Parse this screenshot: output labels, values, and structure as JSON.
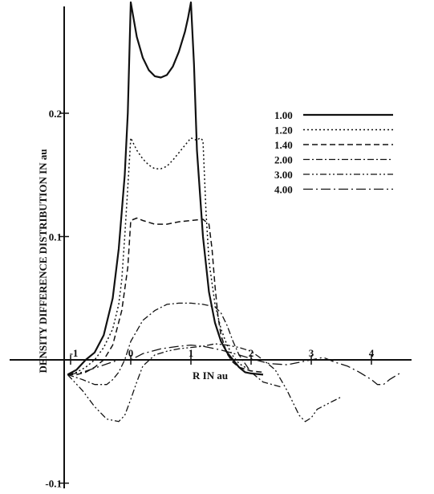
{
  "chart_data": {
    "type": "line",
    "xlabel": "R IN au",
    "ylabel": "DENSITY DIFFERENCE DISTRIBUTION IN au",
    "xlim": [
      -1.1,
      4.7
    ],
    "ylim": [
      -0.1,
      0.29
    ],
    "x_ticks": [
      {
        "value": -1,
        "label": "-1"
      },
      {
        "value": 0,
        "label": "0"
      },
      {
        "value": 1,
        "label": "1"
      },
      {
        "value": 2,
        "label": "2"
      },
      {
        "value": 3,
        "label": "3"
      },
      {
        "value": 4,
        "label": "4"
      }
    ],
    "y_ticks": [
      {
        "value": -0.1,
        "label": "-0.1"
      },
      {
        "value": 0.1,
        "label": "0.1"
      },
      {
        "value": 0.2,
        "label": "0.2"
      }
    ],
    "legend_position": "top-right",
    "series": [
      {
        "name": "1.00",
        "dash": "solid",
        "width": 2.2,
        "x": [
          -1.05,
          -0.9,
          -0.75,
          -0.6,
          -0.45,
          -0.3,
          -0.2,
          -0.1,
          -0.05,
          0,
          0.1,
          0.2,
          0.3,
          0.4,
          0.5,
          0.6,
          0.7,
          0.8,
          0.9,
          0.95,
          1.0,
          1.05,
          1.1,
          1.2,
          1.3,
          1.4,
          1.5,
          1.6,
          1.7,
          1.8,
          1.9,
          2.0,
          2.2
        ],
        "y": [
          -0.012,
          -0.008,
          0.0,
          0.006,
          0.02,
          0.05,
          0.09,
          0.15,
          0.2,
          0.29,
          0.262,
          0.245,
          0.235,
          0.23,
          0.229,
          0.231,
          0.238,
          0.25,
          0.266,
          0.277,
          0.29,
          0.24,
          0.17,
          0.1,
          0.055,
          0.03,
          0.015,
          0.006,
          0.0,
          -0.006,
          -0.01,
          -0.011,
          -0.012
        ]
      },
      {
        "name": "1.20",
        "dash": "dotted",
        "width": 1.5,
        "x": [
          -1.05,
          -0.9,
          -0.75,
          -0.6,
          -0.45,
          -0.3,
          -0.2,
          -0.15,
          -0.1,
          -0.05,
          0,
          0.1,
          0.2,
          0.3,
          0.4,
          0.5,
          0.6,
          0.7,
          0.8,
          0.9,
          1.0,
          1.1,
          1.15,
          1.2,
          1.25,
          1.3,
          1.4,
          1.5,
          1.6,
          1.7,
          1.8,
          1.9,
          2.0
        ],
        "y": [
          -0.012,
          -0.01,
          -0.006,
          0.0,
          0.01,
          0.025,
          0.045,
          0.065,
          0.1,
          0.14,
          0.18,
          0.17,
          0.163,
          0.158,
          0.155,
          0.155,
          0.157,
          0.162,
          0.168,
          0.174,
          0.18,
          0.178,
          0.18,
          0.178,
          0.12,
          0.08,
          0.045,
          0.025,
          0.012,
          0.003,
          -0.003,
          -0.006,
          -0.008
        ]
      },
      {
        "name": "1.40",
        "dash": "dashed",
        "width": 1.5,
        "x": [
          -1.05,
          -0.9,
          -0.75,
          -0.6,
          -0.45,
          -0.3,
          -0.15,
          -0.05,
          0,
          0.1,
          0.2,
          0.4,
          0.6,
          0.8,
          1.0,
          1.2,
          1.3,
          1.35,
          1.4,
          1.45,
          1.5,
          1.6,
          1.7,
          1.8,
          2.0,
          2.2
        ],
        "y": [
          -0.012,
          -0.012,
          -0.01,
          -0.006,
          0.0,
          0.012,
          0.04,
          0.075,
          0.113,
          0.115,
          0.113,
          0.11,
          0.11,
          0.112,
          0.113,
          0.114,
          0.11,
          0.09,
          0.06,
          0.035,
          0.02,
          0.005,
          -0.002,
          -0.006,
          -0.009,
          -0.01
        ]
      },
      {
        "name": "2.00",
        "dash": "dashdot",
        "width": 1.3,
        "x": [
          -1.05,
          -0.8,
          -0.6,
          -0.4,
          -0.3,
          -0.2,
          -0.1,
          0,
          0.2,
          0.4,
          0.6,
          0.8,
          1.0,
          1.2,
          1.4,
          1.5,
          1.6,
          1.7,
          1.8,
          2.0,
          2.2,
          2.5
        ],
        "y": [
          -0.012,
          -0.016,
          -0.02,
          -0.02,
          -0.016,
          -0.01,
          0.0,
          0.015,
          0.032,
          0.04,
          0.045,
          0.046,
          0.046,
          0.045,
          0.043,
          0.038,
          0.028,
          0.015,
          0.004,
          -0.01,
          -0.018,
          -0.022
        ]
      },
      {
        "name": "3.00",
        "dash": "dashdotdot",
        "width": 1.3,
        "x": [
          -1.05,
          -0.8,
          -0.6,
          -0.4,
          -0.2,
          -0.1,
          0,
          0.1,
          0.2,
          0.4,
          0.6,
          0.8,
          1.0,
          1.2,
          1.4,
          1.6,
          1.8,
          2.0,
          2.2,
          2.4,
          2.6,
          2.8,
          2.9,
          3.0,
          3.1,
          3.3,
          3.5
        ],
        "y": [
          -0.012,
          -0.025,
          -0.038,
          -0.048,
          -0.05,
          -0.045,
          -0.032,
          -0.018,
          -0.005,
          0.004,
          0.007,
          0.009,
          0.01,
          0.011,
          0.013,
          0.012,
          0.01,
          0.007,
          0.0,
          -0.008,
          -0.025,
          -0.045,
          -0.05,
          -0.047,
          -0.04,
          -0.035,
          -0.03
        ]
      },
      {
        "name": "4.00",
        "dash": "longdash",
        "width": 1.3,
        "x": [
          -1.05,
          -0.8,
          -0.5,
          -0.2,
          0,
          0.2,
          0.5,
          0.8,
          1.0,
          1.2,
          1.5,
          1.8,
          2.0,
          2.3,
          2.6,
          3.0,
          3.2,
          3.4,
          3.6,
          3.8,
          4.0,
          4.1,
          4.2,
          4.3,
          4.5
        ],
        "y": [
          -0.012,
          -0.01,
          -0.005,
          0.0,
          0.0,
          0.005,
          0.009,
          0.011,
          0.012,
          0.011,
          0.008,
          0.004,
          0.001,
          -0.003,
          -0.004,
          0.0,
          0.002,
          -0.002,
          -0.005,
          -0.01,
          -0.016,
          -0.02,
          -0.02,
          -0.016,
          -0.01
        ]
      }
    ]
  }
}
